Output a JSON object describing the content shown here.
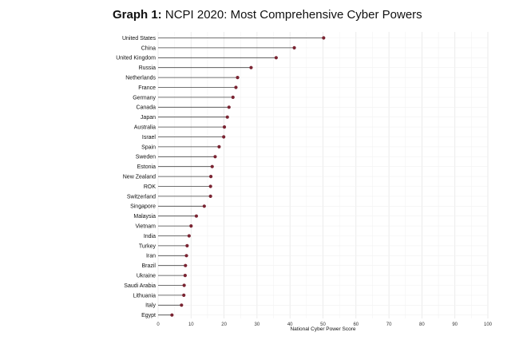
{
  "header": {
    "prefix": "Graph 1:",
    "title": "NCPI 2020: Most Comprehensive Cyber Powers"
  },
  "colors": {
    "dot": "#7a2432",
    "stem": "#444444",
    "grid": "#ececec"
  },
  "chart_data": {
    "type": "lollipop",
    "orientation": "horizontal",
    "title": "NCPI 2020: Most Comprehensive Cyber Powers",
    "xlabel": "National Cyber Power Score",
    "ylabel": "",
    "xlim": [
      0,
      100
    ],
    "xticks": [
      0,
      10,
      20,
      30,
      40,
      50,
      60,
      70,
      80,
      90,
      100
    ],
    "grid": true,
    "categories": [
      "United States",
      "China",
      "United Kingdom",
      "Russia",
      "Netherlands",
      "France",
      "Germany",
      "Canada",
      "Japan",
      "Australia",
      "Israel",
      "Spain",
      "Sweden",
      "Estonia",
      "New Zealand",
      "ROK",
      "Switzerland",
      "Singapore",
      "Malaysia",
      "Vietnam",
      "India",
      "Turkey",
      "Iran",
      "Brazil",
      "Ukraine",
      "Saudi Arabia",
      "Lithuania",
      "Italy",
      "Egypt"
    ],
    "values": [
      50.2,
      41.3,
      35.8,
      28.2,
      24.1,
      23.6,
      22.7,
      21.5,
      21.0,
      20.1,
      19.9,
      18.5,
      17.3,
      16.4,
      16.0,
      15.9,
      15.9,
      14.0,
      11.6,
      10.0,
      9.4,
      8.8,
      8.6,
      8.3,
      8.2,
      7.9,
      7.8,
      7.1,
      4.2
    ]
  }
}
